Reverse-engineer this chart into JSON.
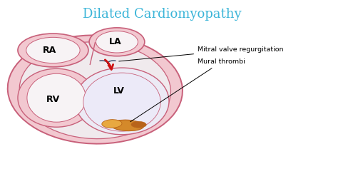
{
  "title": "Dilated Cardiomyopathy",
  "title_color": "#3BB5D8",
  "title_fontsize": 13,
  "bg_color": "#ffffff",
  "heart_outer_fill": "#F2C8D0",
  "heart_outline": "#C8607A",
  "chamber_fill_light": "#F0EAED",
  "chamber_fill_white": "#F7F3F5",
  "lv_fill": "#ECEAF5",
  "label_RA": "RA",
  "label_LA": "LA",
  "label_RV": "RV",
  "label_LV": "LV",
  "annotation1": "Mitral valve regurgitation",
  "annotation2": "Mural thrombi",
  "thrombus_dark": "#B8641A",
  "thrombus_light": "#D4892A",
  "thrombus_highlight": "#E8A840",
  "arrow_red": "#CC1111",
  "valve_line_color": "#334466"
}
